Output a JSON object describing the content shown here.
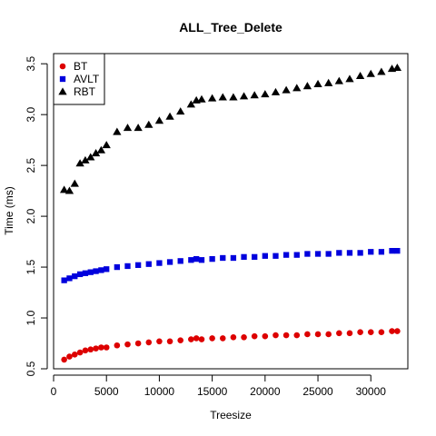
{
  "chart_data": {
    "type": "scatter",
    "title": "ALL_Tree_Delete",
    "xlabel": "Treesize",
    "ylabel": "Time (ms)",
    "xlim": [
      0,
      33500
    ],
    "ylim": [
      0.5,
      3.6
    ],
    "x_ticks": [
      0,
      5000,
      10000,
      15000,
      20000,
      25000,
      30000
    ],
    "x_tick_labels": [
      "0",
      "5000",
      "10000",
      "15000",
      "20000",
      "25000",
      "30000"
    ],
    "y_ticks": [
      0.5,
      1.0,
      1.5,
      2.0,
      2.5,
      3.0,
      3.5
    ],
    "y_tick_labels": [
      "0.5",
      "1.0",
      "1.5",
      "2.0",
      "2.5",
      "3.0",
      "3.5"
    ],
    "grid": false,
    "legend_position": "top-left",
    "x": [
      1000,
      1500,
      2000,
      2500,
      3000,
      3500,
      4000,
      4500,
      5000,
      6000,
      7000,
      8000,
      9000,
      10000,
      11000,
      12000,
      13000,
      13500,
      14000,
      15000,
      16000,
      17000,
      18000,
      19000,
      20000,
      21000,
      22000,
      23000,
      24000,
      25000,
      26000,
      27000,
      28000,
      29000,
      30000,
      31000,
      32000,
      32500
    ],
    "series": [
      {
        "name": "BT",
        "color": "#dd0000",
        "marker": "circle",
        "values": [
          0.59,
          0.62,
          0.64,
          0.66,
          0.68,
          0.69,
          0.7,
          0.71,
          0.71,
          0.73,
          0.74,
          0.75,
          0.76,
          0.77,
          0.77,
          0.78,
          0.79,
          0.8,
          0.79,
          0.8,
          0.8,
          0.81,
          0.81,
          0.82,
          0.82,
          0.83,
          0.83,
          0.83,
          0.84,
          0.84,
          0.84,
          0.85,
          0.85,
          0.86,
          0.86,
          0.86,
          0.87,
          0.87
        ]
      },
      {
        "name": "AVLT",
        "color": "#0000dd",
        "marker": "square",
        "values": [
          1.37,
          1.39,
          1.41,
          1.43,
          1.44,
          1.45,
          1.46,
          1.47,
          1.48,
          1.5,
          1.51,
          1.52,
          1.53,
          1.54,
          1.55,
          1.56,
          1.57,
          1.58,
          1.57,
          1.58,
          1.59,
          1.59,
          1.6,
          1.6,
          1.61,
          1.61,
          1.62,
          1.62,
          1.63,
          1.63,
          1.63,
          1.64,
          1.64,
          1.64,
          1.65,
          1.65,
          1.66,
          1.66
        ]
      },
      {
        "name": "RBT",
        "color": "#000000",
        "marker": "triangle",
        "values": [
          2.26,
          2.25,
          2.32,
          2.52,
          2.55,
          2.58,
          2.62,
          2.65,
          2.7,
          2.83,
          2.87,
          2.87,
          2.9,
          2.94,
          2.98,
          3.03,
          3.1,
          3.14,
          3.15,
          3.16,
          3.17,
          3.17,
          3.18,
          3.19,
          3.2,
          3.22,
          3.24,
          3.26,
          3.28,
          3.3,
          3.31,
          3.33,
          3.35,
          3.38,
          3.4,
          3.42,
          3.45,
          3.46
        ]
      }
    ]
  }
}
